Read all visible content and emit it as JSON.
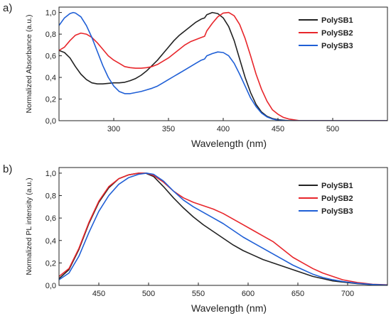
{
  "chart_data": [
    {
      "type": "line",
      "panel_label": "a)",
      "xlabel": "Wavelength (nm)",
      "ylabel": "Normalized Absorbance (a.u.)",
      "xlim": [
        250,
        550
      ],
      "ylim": [
        0,
        1.05
      ],
      "xticks": [
        "300",
        "350",
        "400",
        "450",
        "500"
      ],
      "xtick_values": [
        300,
        350,
        400,
        450,
        500
      ],
      "yticks": [
        "0,0",
        "0,2",
        "0,4",
        "0,6",
        "0,8",
        "1,0"
      ],
      "ytick_values": [
        0,
        0.2,
        0.4,
        0.6,
        0.8,
        1.0
      ],
      "legend_position": "top-right",
      "series": [
        {
          "name": "PolySB1",
          "color": "#222222",
          "points": [
            [
              250,
              0.65
            ],
            [
              255,
              0.63
            ],
            [
              260,
              0.58
            ],
            [
              265,
              0.5
            ],
            [
              270,
              0.43
            ],
            [
              275,
              0.38
            ],
            [
              280,
              0.35
            ],
            [
              285,
              0.34
            ],
            [
              290,
              0.34
            ],
            [
              295,
              0.345
            ],
            [
              300,
              0.35
            ],
            [
              305,
              0.35
            ],
            [
              310,
              0.355
            ],
            [
              315,
              0.37
            ],
            [
              320,
              0.39
            ],
            [
              325,
              0.42
            ],
            [
              330,
              0.46
            ],
            [
              335,
              0.51
            ],
            [
              340,
              0.56
            ],
            [
              345,
              0.62
            ],
            [
              350,
              0.68
            ],
            [
              355,
              0.74
            ],
            [
              360,
              0.79
            ],
            [
              365,
              0.83
            ],
            [
              370,
              0.87
            ],
            [
              375,
              0.91
            ],
            [
              380,
              0.94
            ],
            [
              383,
              0.95
            ],
            [
              385,
              0.98
            ],
            [
              390,
              1.0
            ],
            [
              395,
              0.99
            ],
            [
              400,
              0.95
            ],
            [
              405,
              0.87
            ],
            [
              410,
              0.74
            ],
            [
              415,
              0.57
            ],
            [
              420,
              0.4
            ],
            [
              425,
              0.26
            ],
            [
              430,
              0.15
            ],
            [
              435,
              0.08
            ],
            [
              440,
              0.04
            ],
            [
              445,
              0.02
            ],
            [
              450,
              0.01
            ],
            [
              460,
              0.0
            ],
            [
              550,
              0.0
            ]
          ]
        },
        {
          "name": "PolySB2",
          "color": "#e8262b",
          "points": [
            [
              250,
              0.65
            ],
            [
              255,
              0.68
            ],
            [
              260,
              0.74
            ],
            [
              265,
              0.79
            ],
            [
              270,
              0.81
            ],
            [
              275,
              0.8
            ],
            [
              280,
              0.77
            ],
            [
              285,
              0.72
            ],
            [
              290,
              0.66
            ],
            [
              295,
              0.6
            ],
            [
              300,
              0.56
            ],
            [
              305,
              0.53
            ],
            [
              310,
              0.5
            ],
            [
              315,
              0.49
            ],
            [
              320,
              0.485
            ],
            [
              325,
              0.485
            ],
            [
              330,
              0.49
            ],
            [
              335,
              0.5
            ],
            [
              340,
              0.52
            ],
            [
              345,
              0.55
            ],
            [
              350,
              0.58
            ],
            [
              355,
              0.62
            ],
            [
              360,
              0.66
            ],
            [
              365,
              0.7
            ],
            [
              370,
              0.73
            ],
            [
              375,
              0.75
            ],
            [
              380,
              0.77
            ],
            [
              383,
              0.78
            ],
            [
              385,
              0.83
            ],
            [
              390,
              0.9
            ],
            [
              395,
              0.96
            ],
            [
              400,
              0.995
            ],
            [
              405,
              1.0
            ],
            [
              410,
              0.97
            ],
            [
              415,
              0.89
            ],
            [
              420,
              0.76
            ],
            [
              425,
              0.6
            ],
            [
              430,
              0.43
            ],
            [
              435,
              0.29
            ],
            [
              440,
              0.18
            ],
            [
              445,
              0.1
            ],
            [
              450,
              0.06
            ],
            [
              455,
              0.03
            ],
            [
              460,
              0.015
            ],
            [
              470,
              0.0
            ],
            [
              550,
              0.0
            ]
          ]
        },
        {
          "name": "PolySB3",
          "color": "#1f5fd6",
          "points": [
            [
              250,
              0.88
            ],
            [
              255,
              0.95
            ],
            [
              260,
              0.99
            ],
            [
              263,
              1.0
            ],
            [
              265,
              0.995
            ],
            [
              270,
              0.96
            ],
            [
              275,
              0.88
            ],
            [
              280,
              0.77
            ],
            [
              285,
              0.64
            ],
            [
              290,
              0.51
            ],
            [
              295,
              0.4
            ],
            [
              300,
              0.32
            ],
            [
              305,
              0.27
            ],
            [
              310,
              0.25
            ],
            [
              315,
              0.25
            ],
            [
              320,
              0.26
            ],
            [
              325,
              0.27
            ],
            [
              330,
              0.285
            ],
            [
              335,
              0.3
            ],
            [
              340,
              0.32
            ],
            [
              345,
              0.35
            ],
            [
              350,
              0.38
            ],
            [
              355,
              0.41
            ],
            [
              360,
              0.44
            ],
            [
              365,
              0.47
            ],
            [
              370,
              0.5
            ],
            [
              375,
              0.53
            ],
            [
              380,
              0.56
            ],
            [
              383,
              0.57
            ],
            [
              385,
              0.6
            ],
            [
              390,
              0.62
            ],
            [
              395,
              0.635
            ],
            [
              400,
              0.63
            ],
            [
              405,
              0.6
            ],
            [
              410,
              0.53
            ],
            [
              415,
              0.43
            ],
            [
              420,
              0.32
            ],
            [
              425,
              0.21
            ],
            [
              430,
              0.13
            ],
            [
              435,
              0.07
            ],
            [
              440,
              0.035
            ],
            [
              445,
              0.015
            ],
            [
              450,
              0.005
            ],
            [
              460,
              0.0
            ],
            [
              550,
              0.0
            ]
          ]
        }
      ]
    },
    {
      "type": "line",
      "panel_label": "b)",
      "xlabel": "Wavelength (nm)",
      "ylabel": "Normalized PL intensity (a.u.)",
      "xlim": [
        410,
        740
      ],
      "ylim": [
        0,
        1.05
      ],
      "xticks": [
        "450",
        "500",
        "550",
        "600",
        "650",
        "700"
      ],
      "xtick_values": [
        450,
        500,
        550,
        600,
        650,
        700
      ],
      "yticks": [
        "0,0",
        "0,2",
        "0,4",
        "0,6",
        "0,8",
        "1,0"
      ],
      "ytick_values": [
        0,
        0.2,
        0.4,
        0.6,
        0.8,
        1.0
      ],
      "legend_position": "top-right",
      "series": [
        {
          "name": "PolySB1",
          "color": "#222222",
          "points": [
            [
              410,
              0.06
            ],
            [
              420,
              0.14
            ],
            [
              430,
              0.32
            ],
            [
              440,
              0.55
            ],
            [
              450,
              0.74
            ],
            [
              460,
              0.87
            ],
            [
              470,
              0.95
            ],
            [
              480,
              0.985
            ],
            [
              490,
              1.0
            ],
            [
              497,
              1.0
            ],
            [
              505,
              0.97
            ],
            [
              515,
              0.88
            ],
            [
              525,
              0.78
            ],
            [
              535,
              0.69
            ],
            [
              545,
              0.61
            ],
            [
              555,
              0.54
            ],
            [
              565,
              0.48
            ],
            [
              575,
              0.42
            ],
            [
              585,
              0.36
            ],
            [
              595,
              0.31
            ],
            [
              605,
              0.27
            ],
            [
              615,
              0.23
            ],
            [
              625,
              0.2
            ],
            [
              635,
              0.17
            ],
            [
              645,
              0.14
            ],
            [
              655,
              0.11
            ],
            [
              665,
              0.08
            ],
            [
              675,
              0.06
            ],
            [
              685,
              0.04
            ],
            [
              695,
              0.03
            ],
            [
              710,
              0.015
            ],
            [
              725,
              0.007
            ],
            [
              740,
              0.003
            ]
          ]
        },
        {
          "name": "PolySB2",
          "color": "#e8262b",
          "points": [
            [
              410,
              0.08
            ],
            [
              420,
              0.15
            ],
            [
              430,
              0.33
            ],
            [
              440,
              0.56
            ],
            [
              450,
              0.75
            ],
            [
              460,
              0.88
            ],
            [
              470,
              0.95
            ],
            [
              480,
              0.985
            ],
            [
              490,
              1.0
            ],
            [
              498,
              1.0
            ],
            [
              505,
              0.98
            ],
            [
              515,
              0.92
            ],
            [
              525,
              0.84
            ],
            [
              535,
              0.78
            ],
            [
              545,
              0.74
            ],
            [
              555,
              0.71
            ],
            [
              565,
              0.68
            ],
            [
              575,
              0.64
            ],
            [
              585,
              0.59
            ],
            [
              595,
              0.54
            ],
            [
              605,
              0.49
            ],
            [
              615,
              0.44
            ],
            [
              625,
              0.39
            ],
            [
              635,
              0.32
            ],
            [
              645,
              0.25
            ],
            [
              655,
              0.2
            ],
            [
              665,
              0.15
            ],
            [
              675,
              0.11
            ],
            [
              685,
              0.08
            ],
            [
              695,
              0.05
            ],
            [
              710,
              0.025
            ],
            [
              725,
              0.01
            ],
            [
              740,
              0.005
            ]
          ]
        },
        {
          "name": "PolySB3",
          "color": "#1f5fd6",
          "points": [
            [
              410,
              0.05
            ],
            [
              420,
              0.11
            ],
            [
              430,
              0.26
            ],
            [
              440,
              0.47
            ],
            [
              450,
              0.66
            ],
            [
              460,
              0.8
            ],
            [
              470,
              0.9
            ],
            [
              480,
              0.96
            ],
            [
              490,
              0.99
            ],
            [
              498,
              1.0
            ],
            [
              505,
              0.99
            ],
            [
              515,
              0.93
            ],
            [
              525,
              0.84
            ],
            [
              535,
              0.76
            ],
            [
              545,
              0.7
            ],
            [
              555,
              0.65
            ],
            [
              565,
              0.6
            ],
            [
              575,
              0.55
            ],
            [
              585,
              0.49
            ],
            [
              595,
              0.43
            ],
            [
              605,
              0.38
            ],
            [
              615,
              0.33
            ],
            [
              625,
              0.28
            ],
            [
              635,
              0.23
            ],
            [
              645,
              0.18
            ],
            [
              655,
              0.14
            ],
            [
              665,
              0.1
            ],
            [
              675,
              0.07
            ],
            [
              685,
              0.05
            ],
            [
              695,
              0.035
            ],
            [
              710,
              0.018
            ],
            [
              725,
              0.008
            ],
            [
              740,
              0.003
            ]
          ]
        }
      ]
    }
  ]
}
